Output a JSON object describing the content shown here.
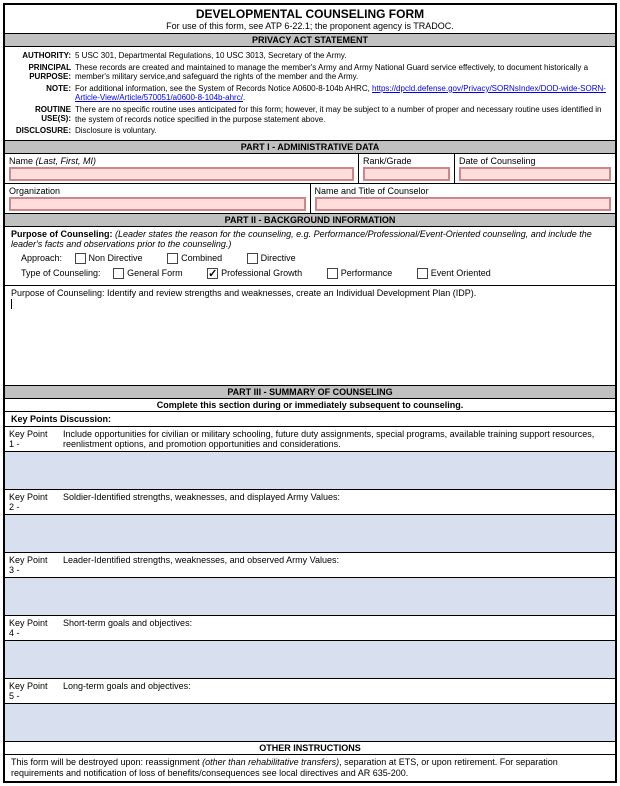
{
  "title": "DEVELOPMENTAL COUNSELING FORM",
  "subtitle": "For use of this form, see ATP 6-22.1; the proponent agency is TRADOC.",
  "privacy_header": "PRIVACY ACT STATEMENT",
  "privacy": {
    "authority_label": "AUTHORITY:",
    "authority": "5 USC 301, Departmental Regulations, 10 USC 3013, Secretary of the Army.",
    "principal_label": "PRINCIPAL PURPOSE:",
    "principal": "These records are created and maintained to manage the member's Army and Army National Guard service effectively, to document historically a member's military service,and safeguard the rights of the member and the Army.",
    "note_label": "NOTE:",
    "note_pre": "For additional information, see the System of Records Notice A0600-8-104b AHRC, ",
    "note_link": "https://dpcld.defense.gov/Privacy/SORNsIndex/DOD-wide-SORN-Article-View/Article/570051/a0600-8-104b-ahrc/",
    "routine_label": "ROUTINE USE(S):",
    "routine": "There are no specific routine uses anticipated for this form; however, it may be subject to a number of proper and necessary routine uses identified in the system of records notice specified in the purpose statement above.",
    "disclosure_label": "DISCLOSURE:",
    "disclosure": "Disclosure is voluntary."
  },
  "part1_header": "PART I - ADMINISTRATIVE DATA",
  "admin": {
    "name_label": "Name ",
    "name_italic": "(Last, First, MI)",
    "rank_label": "Rank/Grade",
    "date_label": "Date of Counseling",
    "org_label": "Organization",
    "counselor_label": "Name and Title of Counselor"
  },
  "part2_header": "PART II - BACKGROUND INFORMATION",
  "purpose_bold": "Purpose of Counseling:",
  "purpose_italic": " (Leader states the reason for the counseling, e.g. Performance/Professional/Event-Oriented counseling, and include the leader's facts and observations prior to the counseling.)",
  "approach_label": "Approach:",
  "approach": {
    "nondirective": "Non Directive",
    "combined": "Combined",
    "directive": "Directive"
  },
  "type_label": "Type of Counseling:",
  "types": {
    "general": "General Form",
    "prof": "Professional Growth",
    "perf": "Performance",
    "event": "Event Oriented"
  },
  "type_checked": "prof",
  "purpose_text": "Purpose of Counseling: Identify and review strengths and weaknesses, create an Individual Development Plan (IDP).",
  "part3_header": "PART III - SUMMARY OF COUNSELING",
  "part3_sub": "Complete this section during or immediately subsequent to counseling.",
  "kp_discussion": "Key Points Discussion:",
  "keypoints": [
    {
      "label": "Key Point 1 -",
      "text": "Include opportunities for civilian or military schooling, future duty assignments, special programs, available training support resources, reenlistment options, and promotion opportunities and considerations."
    },
    {
      "label": "Key Point 2 -",
      "text": "Soldier-Identified strengths, weaknesses, and displayed Army Values:"
    },
    {
      "label": "Key Point 3 -",
      "text": "Leader-Identified strengths, weaknesses, and observed Army Values:"
    },
    {
      "label": "Key Point 4 -",
      "text": "Short-term goals and objectives:"
    },
    {
      "label": "Key Point 5 -",
      "text": "Long-term goals and objectives:"
    }
  ],
  "other_header": "OTHER INSTRUCTIONS",
  "other_pre": "This form will be destroyed upon: reassignment ",
  "other_italic": "(other than rehabilitative transfers)",
  "other_post": ", separation at ETS, or upon retirement. For separation requirements and notification of loss of benefits/consequences see local directives and AR 635-200.",
  "colors": {
    "section_bg": "#c0c0c0",
    "required_border": "#cc8888",
    "required_bg": "#ffdddd",
    "area_bg": "#d8e0f0"
  }
}
